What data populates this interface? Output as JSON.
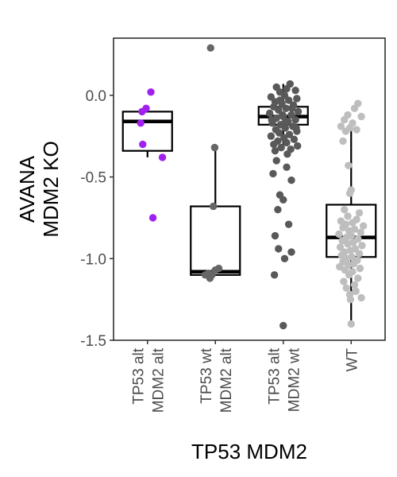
{
  "chart_data": {
    "type": "box",
    "xlabel": "TP53 MDM2",
    "ylabel_lines": [
      "AVANA",
      "MDM2 KO"
    ],
    "ylim": [
      -1.5,
      0.35
    ],
    "yticks": [
      "-1.5",
      "-1.0",
      "-0.5",
      "0.0"
    ],
    "grid": false,
    "legend": "none",
    "categories": [
      {
        "lines": [
          "TP53 alt",
          "MDM2 alt"
        ]
      },
      {
        "lines": [
          "TP53 wt",
          "MDM2 alt"
        ]
      },
      {
        "lines": [
          "TP53 alt",
          "MDM2 wt"
        ]
      },
      {
        "lines": [
          "WT"
        ]
      }
    ],
    "series": [
      {
        "color": "#a020f0",
        "box": {
          "q1": -0.34,
          "median": -0.16,
          "q3": -0.1,
          "whisker_low": -0.38,
          "whisker_high": -0.1
        },
        "points": [
          {
            "x": 1.05,
            "y": 0.02
          },
          {
            "x": 0.98,
            "y": -0.08
          },
          {
            "x": 0.92,
            "y": -0.1
          },
          {
            "x": 0.9,
            "y": -0.17
          },
          {
            "x": 0.93,
            "y": -0.3
          },
          {
            "x": 1.22,
            "y": -0.38
          },
          {
            "x": 1.08,
            "y": -0.75
          }
        ]
      },
      {
        "color": "#666666",
        "box": {
          "q1": -1.1,
          "median": -1.08,
          "q3": -0.68,
          "whisker_low": -1.1,
          "whisker_high": -0.32
        },
        "points": [
          {
            "x": 1.93,
            "y": 0.29
          },
          {
            "x": 1.99,
            "y": -0.32
          },
          {
            "x": 1.97,
            "y": -0.68
          },
          {
            "x": 2.05,
            "y": -1.06
          },
          {
            "x": 2.0,
            "y": -1.07
          },
          {
            "x": 1.9,
            "y": -1.09
          },
          {
            "x": 1.95,
            "y": -1.1
          },
          {
            "x": 1.85,
            "y": -1.1
          },
          {
            "x": 1.92,
            "y": -1.12
          }
        ]
      },
      {
        "color": "#595959",
        "box": {
          "q1": -0.18,
          "median": -0.13,
          "q3": -0.07,
          "whisker_low": -0.33,
          "whisker_high": 0.07
        },
        "points": [
          {
            "x": 3.1,
            "y": 0.07
          },
          {
            "x": 2.9,
            "y": 0.05
          },
          {
            "x": 3.05,
            "y": 0.04
          },
          {
            "x": 3.18,
            "y": 0.03
          },
          {
            "x": 2.95,
            "y": 0.02
          },
          {
            "x": 3.02,
            "y": 0.0
          },
          {
            "x": 2.82,
            "y": -0.01
          },
          {
            "x": 3.2,
            "y": -0.02
          },
          {
            "x": 3.08,
            "y": -0.03
          },
          {
            "x": 2.88,
            "y": -0.04
          },
          {
            "x": 2.98,
            "y": -0.05
          },
          {
            "x": 3.15,
            "y": -0.06
          },
          {
            "x": 2.86,
            "y": -0.07
          },
          {
            "x": 3.04,
            "y": -0.08
          },
          {
            "x": 2.93,
            "y": -0.09
          },
          {
            "x": 3.22,
            "y": -0.1
          },
          {
            "x": 2.8,
            "y": -0.11
          },
          {
            "x": 3.12,
            "y": -0.12
          },
          {
            "x": 3.0,
            "y": -0.13
          },
          {
            "x": 2.9,
            "y": -0.14
          },
          {
            "x": 3.18,
            "y": -0.15
          },
          {
            "x": 3.07,
            "y": -0.16
          },
          {
            "x": 2.84,
            "y": -0.17
          },
          {
            "x": 2.96,
            "y": -0.18
          },
          {
            "x": 3.14,
            "y": -0.19
          },
          {
            "x": 3.03,
            "y": -0.2
          },
          {
            "x": 2.89,
            "y": -0.21
          },
          {
            "x": 3.2,
            "y": -0.22
          },
          {
            "x": 2.94,
            "y": -0.23
          },
          {
            "x": 3.09,
            "y": -0.24
          },
          {
            "x": 2.82,
            "y": -0.25
          },
          {
            "x": 3.01,
            "y": -0.26
          },
          {
            "x": 3.16,
            "y": -0.27
          },
          {
            "x": 2.92,
            "y": -0.28
          },
          {
            "x": 3.05,
            "y": -0.29
          },
          {
            "x": 2.86,
            "y": -0.3
          },
          {
            "x": 3.21,
            "y": -0.31
          },
          {
            "x": 2.97,
            "y": -0.32
          },
          {
            "x": 3.11,
            "y": -0.33
          },
          {
            "x": 2.88,
            "y": -0.34
          },
          {
            "x": 3.06,
            "y": -0.36
          },
          {
            "x": 2.99,
            "y": -0.12
          },
          {
            "x": 3.13,
            "y": -0.08
          },
          {
            "x": 2.83,
            "y": -0.15
          },
          {
            "x": 3.19,
            "y": -0.2
          },
          {
            "x": 2.95,
            "y": -0.03
          },
          {
            "x": 3.02,
            "y": -0.17
          },
          {
            "x": 2.9,
            "y": -0.4
          },
          {
            "x": 3.05,
            "y": -0.44
          },
          {
            "x": 2.85,
            "y": -0.48
          },
          {
            "x": 3.12,
            "y": -0.52
          },
          {
            "x": 2.95,
            "y": -0.61
          },
          {
            "x": 3.0,
            "y": -0.64
          },
          {
            "x": 2.92,
            "y": -0.7
          },
          {
            "x": 3.08,
            "y": -0.79
          },
          {
            "x": 2.88,
            "y": -0.86
          },
          {
            "x": 2.93,
            "y": -0.94
          },
          {
            "x": 3.12,
            "y": -0.96
          },
          {
            "x": 3.02,
            "y": -1.0
          },
          {
            "x": 2.87,
            "y": -1.1
          },
          {
            "x": 3.0,
            "y": -1.41
          }
        ]
      },
      {
        "color": "#bebebe",
        "box": {
          "q1": -0.99,
          "median": -0.87,
          "q3": -0.67,
          "whisker_low": -1.4,
          "whisker_high": -0.21
        },
        "points": [
          {
            "x": 4.1,
            "y": -0.05
          },
          {
            "x": 4.05,
            "y": -0.08
          },
          {
            "x": 3.95,
            "y": -0.12
          },
          {
            "x": 4.15,
            "y": -0.13
          },
          {
            "x": 3.9,
            "y": -0.15
          },
          {
            "x": 4.02,
            "y": -0.17
          },
          {
            "x": 3.85,
            "y": -0.19
          },
          {
            "x": 3.98,
            "y": -0.2
          },
          {
            "x": 4.08,
            "y": -0.21
          },
          {
            "x": 3.92,
            "y": -0.22
          },
          {
            "x": 3.88,
            "y": -0.28
          },
          {
            "x": 3.96,
            "y": -0.43
          },
          {
            "x": 4.0,
            "y": -0.58
          },
          {
            "x": 3.98,
            "y": -0.6
          },
          {
            "x": 3.9,
            "y": -0.7
          },
          {
            "x": 4.12,
            "y": -0.72
          },
          {
            "x": 3.95,
            "y": -0.74
          },
          {
            "x": 4.08,
            "y": -0.76
          },
          {
            "x": 3.85,
            "y": -0.77
          },
          {
            "x": 4.02,
            "y": -0.78
          },
          {
            "x": 3.92,
            "y": -0.79
          },
          {
            "x": 4.18,
            "y": -0.8
          },
          {
            "x": 3.88,
            "y": -0.81
          },
          {
            "x": 4.05,
            "y": -0.82
          },
          {
            "x": 3.97,
            "y": -0.83
          },
          {
            "x": 4.14,
            "y": -0.84
          },
          {
            "x": 3.82,
            "y": -0.85
          },
          {
            "x": 4.0,
            "y": -0.86
          },
          {
            "x": 3.93,
            "y": -0.87
          },
          {
            "x": 4.1,
            "y": -0.88
          },
          {
            "x": 3.87,
            "y": -0.89
          },
          {
            "x": 4.03,
            "y": -0.9
          },
          {
            "x": 3.95,
            "y": -0.91
          },
          {
            "x": 4.16,
            "y": -0.92
          },
          {
            "x": 3.84,
            "y": -0.93
          },
          {
            "x": 4.06,
            "y": -0.94
          },
          {
            "x": 3.99,
            "y": -0.95
          },
          {
            "x": 3.9,
            "y": -0.96
          },
          {
            "x": 4.12,
            "y": -0.97
          },
          {
            "x": 3.86,
            "y": -0.98
          },
          {
            "x": 4.01,
            "y": -0.99
          },
          {
            "x": 3.94,
            "y": -1.0
          },
          {
            "x": 4.09,
            "y": -1.01
          },
          {
            "x": 3.88,
            "y": -1.02
          },
          {
            "x": 4.04,
            "y": -1.03
          },
          {
            "x": 3.96,
            "y": -1.04
          },
          {
            "x": 3.83,
            "y": -1.05
          },
          {
            "x": 4.13,
            "y": -1.06
          },
          {
            "x": 3.91,
            "y": -1.07
          },
          {
            "x": 4.02,
            "y": -1.08
          },
          {
            "x": 3.97,
            "y": -1.1
          },
          {
            "x": 4.1,
            "y": -1.12
          },
          {
            "x": 3.89,
            "y": -1.14
          },
          {
            "x": 4.05,
            "y": -1.16
          },
          {
            "x": 3.93,
            "y": -1.18
          },
          {
            "x": 4.07,
            "y": -1.2
          },
          {
            "x": 3.98,
            "y": -1.22
          },
          {
            "x": 4.15,
            "y": -1.24
          },
          {
            "x": 3.99,
            "y": -1.25
          },
          {
            "x": 4.0,
            "y": -1.4
          }
        ]
      }
    ]
  }
}
